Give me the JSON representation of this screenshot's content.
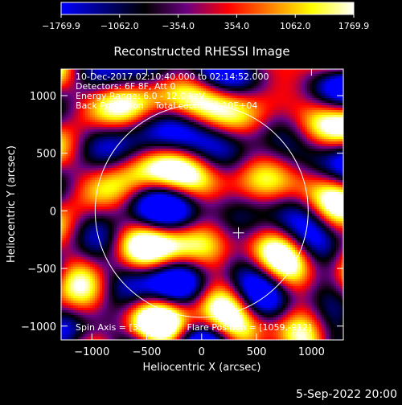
{
  "chart_data": {
    "type": "heatmap",
    "title": "Reconstructed RHESSI Image",
    "xlabel": "Heliocentric X (arcsec)",
    "ylabel": "Heliocentric Y (arcsec)",
    "xlim": [
      -1280,
      1290
    ],
    "ylim": [
      -1120,
      1230
    ],
    "xticks": [
      -1000,
      -500,
      0,
      500,
      1000
    ],
    "xtick_labels": [
      "−1000",
      "−500",
      "0",
      "500",
      "1000"
    ],
    "yticks": [
      -1000,
      -500,
      0,
      500,
      1000
    ],
    "ytick_labels": [
      "−1000",
      "−500",
      "0",
      "500",
      "1000"
    ],
    "colorbar": {
      "min": -1769.9,
      "max": 1769.9,
      "ticks": [
        -1769.9,
        -1062.0,
        -354.0,
        354.0,
        1062.0,
        1769.9
      ],
      "tick_labels": [
        "−1769.9",
        "−1062.0",
        "−354.0",
        "354.0",
        "1062.0",
        "1769.9"
      ],
      "colormap": [
        "#0000ff",
        "#000080",
        "#000000",
        "#6a0080",
        "#ff0000",
        "#ff8000",
        "#ffff00",
        "#ffffff"
      ]
    },
    "solar_disk": {
      "center": [
        0,
        0
      ],
      "radius": 970,
      "color": "#ffffff"
    },
    "spin_axis_marker": {
      "x": 335,
      "y": -191
    },
    "annotations": [
      "10-Dec-2017 02:10:40.000 to 02:14:52.000",
      "Detectors: 6F 8F, Att 0",
      "Energy Range: 6.0 - 12.0 keV",
      "Back Projection    Total counts: 1.10E+04"
    ],
    "bottom_annotation": "Spin Axis = [335,-191]    Flare Position = [1059,-912]"
  },
  "footer": {
    "timestamp": "5-Sep-2022 20:00"
  }
}
